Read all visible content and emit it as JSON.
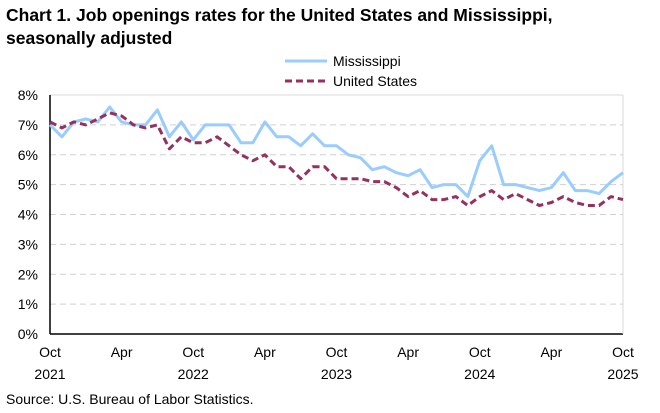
{
  "chart_data": {
    "type": "line",
    "title": "Chart 1. Job openings rates for the United States and Mississippi, seasonally adjusted",
    "source": "Source: U.S. Bureau of Labor Statistics.",
    "ylim": [
      0,
      8
    ],
    "yticks": [
      "0%",
      "1%",
      "2%",
      "3%",
      "4%",
      "5%",
      "6%",
      "7%",
      "8%"
    ],
    "xticks": [
      {
        "month": "Oct",
        "year": "2021",
        "index": 0
      },
      {
        "month": "Apr",
        "year": "",
        "index": 6
      },
      {
        "month": "Oct",
        "year": "2022",
        "index": 12
      },
      {
        "month": "Apr",
        "year": "",
        "index": 18
      },
      {
        "month": "Oct",
        "year": "2023",
        "index": 24
      },
      {
        "month": "Apr",
        "year": "",
        "index": 30
      },
      {
        "month": "Oct",
        "year": "2024",
        "index": 36
      },
      {
        "month": "Apr",
        "year": "",
        "index": 42
      },
      {
        "month": "Oct",
        "year": "2025",
        "index": 48
      }
    ],
    "x_range": [
      "Oct 2021",
      "Oct 2025"
    ],
    "grid": true,
    "legend_position": "top-right",
    "series": [
      {
        "name": "Mississippi",
        "color": "#99ccff",
        "style": "solid",
        "values": [
          7.0,
          6.6,
          7.1,
          7.2,
          7.1,
          7.6,
          7.1,
          7.0,
          7.0,
          7.5,
          6.6,
          7.1,
          6.5,
          7.0,
          7.0,
          7.0,
          6.4,
          6.4,
          7.1,
          6.6,
          6.6,
          6.3,
          6.7,
          6.3,
          6.3,
          6.0,
          5.9,
          5.5,
          5.6,
          5.4,
          5.3,
          5.5,
          4.9,
          5.0,
          5.0,
          4.6,
          5.8,
          6.3,
          5.0,
          5.0,
          4.9,
          4.8,
          4.9,
          5.4,
          4.8,
          4.8,
          4.7,
          5.1,
          5.4
        ]
      },
      {
        "name": "United States",
        "color": "#96305e",
        "style": "dashed",
        "values": [
          7.1,
          6.9,
          7.1,
          7.0,
          7.2,
          7.4,
          7.3,
          7.0,
          6.9,
          7.0,
          6.2,
          6.6,
          6.4,
          6.4,
          6.6,
          6.3,
          6.0,
          5.8,
          6.0,
          5.6,
          5.6,
          5.2,
          5.6,
          5.6,
          5.2,
          5.2,
          5.2,
          5.1,
          5.1,
          4.9,
          4.6,
          4.8,
          4.5,
          4.5,
          4.6,
          4.3,
          4.6,
          4.8,
          4.5,
          4.7,
          4.5,
          4.3,
          4.4,
          4.6,
          4.4,
          4.3,
          4.3,
          4.6,
          4.5
        ]
      }
    ]
  }
}
